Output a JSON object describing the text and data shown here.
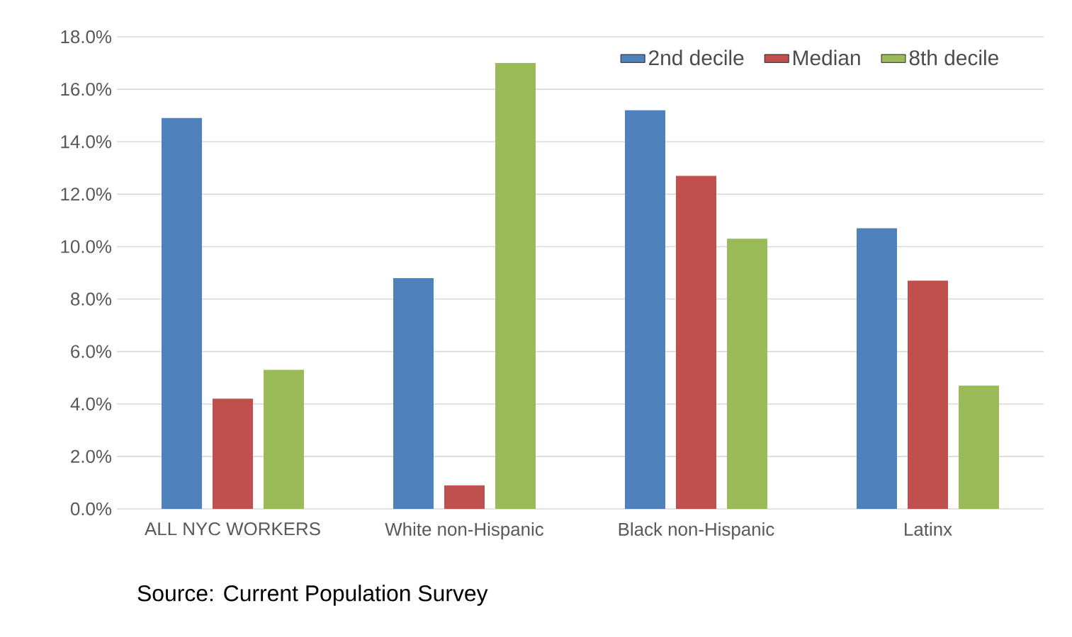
{
  "chart_data": {
    "type": "bar",
    "categories": [
      "ALL NYC WORKERS",
      "White non-Hispanic",
      "Black non-Hispanic",
      "Latinx"
    ],
    "series": [
      {
        "name": "2nd decile",
        "color": "#4f81bd",
        "values": [
          14.9,
          8.8,
          15.2,
          10.7
        ]
      },
      {
        "name": "Median",
        "color": "#c0504d",
        "values": [
          4.2,
          0.9,
          12.7,
          8.7
        ]
      },
      {
        "name": "8th decile",
        "color": "#9bbb59",
        "values": [
          5.3,
          17.0,
          10.3,
          4.7
        ]
      }
    ],
    "ylim": [
      0,
      18
    ],
    "yticks": [
      {
        "value": 0,
        "label": "0.0%"
      },
      {
        "value": 2,
        "label": "2.0%"
      },
      {
        "value": 4,
        "label": "4.0%"
      },
      {
        "value": 6,
        "label": "6.0%"
      },
      {
        "value": 8,
        "label": "8.0%"
      },
      {
        "value": 10,
        "label": "10.0%"
      },
      {
        "value": 12,
        "label": "12.0%"
      },
      {
        "value": 14,
        "label": "14.0%"
      },
      {
        "value": 16,
        "label": "16.0%"
      },
      {
        "value": 18,
        "label": "18.0%"
      }
    ],
    "grid": "y",
    "legend": "top right",
    "annotations": [
      "Source: Current Population Survey"
    ]
  }
}
